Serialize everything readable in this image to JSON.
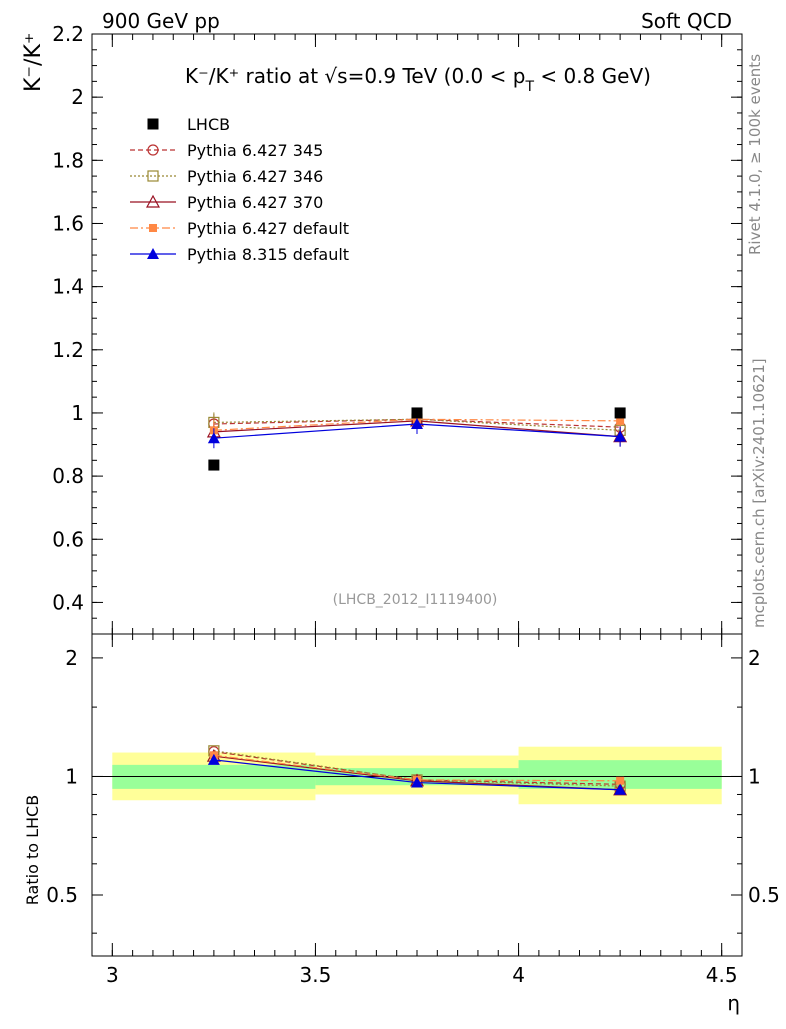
{
  "header": {
    "left_label": "900 GeV pp",
    "right_label": "Soft QCD",
    "side_label_top": "Rivet 4.1.0, ≥ 100k events",
    "side_label_bottom": "mcplots.cern.ch [arXiv:2401.10621]"
  },
  "chart_data": {
    "type": "line",
    "title": "K⁻/K⁺ ratio at √s=0.9 TeV (0.0 < p",
    "title_sub": "T",
    "title_tail": " < 0.8 GeV)",
    "ylabel": "K⁻/K⁺",
    "xlabel": "η",
    "analysis_tag": "(LHCB_2012_I1119400)",
    "xlim": [
      2.95,
      4.55
    ],
    "ylim": [
      0.3,
      2.2
    ],
    "x_ticks": [
      3,
      3.5,
      4,
      4.5
    ],
    "x_tick_labels": [
      "3",
      "3.5",
      "4",
      "4.5"
    ],
    "y_ticks": [
      0.4,
      0.6,
      0.8,
      1,
      1.2,
      1.4,
      1.6,
      1.8,
      2,
      2.2
    ],
    "y_tick_labels": [
      "0.4",
      "0.6",
      "0.8",
      "1",
      "1.2",
      "1.4",
      "1.6",
      "1.8",
      "2",
      "2.2"
    ],
    "x": [
      3.25,
      3.75,
      4.25
    ],
    "data": {
      "name": "LHCB",
      "values": [
        0.835,
        1.0,
        1.0
      ]
    },
    "series": [
      {
        "name": "Pythia 6.427 345",
        "values": [
          0.965,
          0.98,
          0.955
        ],
        "color": "#bb3333",
        "dash": "5,3",
        "marker": "circle-open"
      },
      {
        "name": "Pythia 6.427 346",
        "values": [
          0.97,
          0.98,
          0.945
        ],
        "color": "#998833",
        "dash": "2,2",
        "marker": "square-open"
      },
      {
        "name": "Pythia 6.427 370",
        "values": [
          0.94,
          0.975,
          0.925
        ],
        "color": "#991122",
        "dash": "",
        "marker": "triangle-open"
      },
      {
        "name": "Pythia 6.427 default",
        "values": [
          0.945,
          0.98,
          0.975
        ],
        "color": "#ff8844",
        "dash": "8,3,2,3",
        "marker": "square-filled"
      },
      {
        "name": "Pythia 8.315 default",
        "values": [
          0.92,
          0.965,
          0.925
        ],
        "color": "#0000dd",
        "dash": "",
        "marker": "triangle-filled"
      }
    ],
    "ratio": {
      "ylabel": "Ratio to LHCB",
      "ylim": [
        0.35,
        2.3
      ],
      "y_tick_labels": [
        "0.5",
        "1",
        "2"
      ],
      "y_ticks": [
        0.5,
        1,
        2
      ],
      "bands": [
        {
          "x_lo": 3.0,
          "x_hi": 3.5,
          "inner": [
            0.93,
            1.07
          ],
          "outer": [
            0.87,
            1.15
          ]
        },
        {
          "x_lo": 3.5,
          "x_hi": 4.0,
          "inner": [
            0.95,
            1.05
          ],
          "outer": [
            0.9,
            1.13
          ]
        },
        {
          "x_lo": 4.0,
          "x_hi": 4.5,
          "inner": [
            0.93,
            1.1
          ],
          "outer": [
            0.85,
            1.19
          ]
        }
      ]
    }
  }
}
